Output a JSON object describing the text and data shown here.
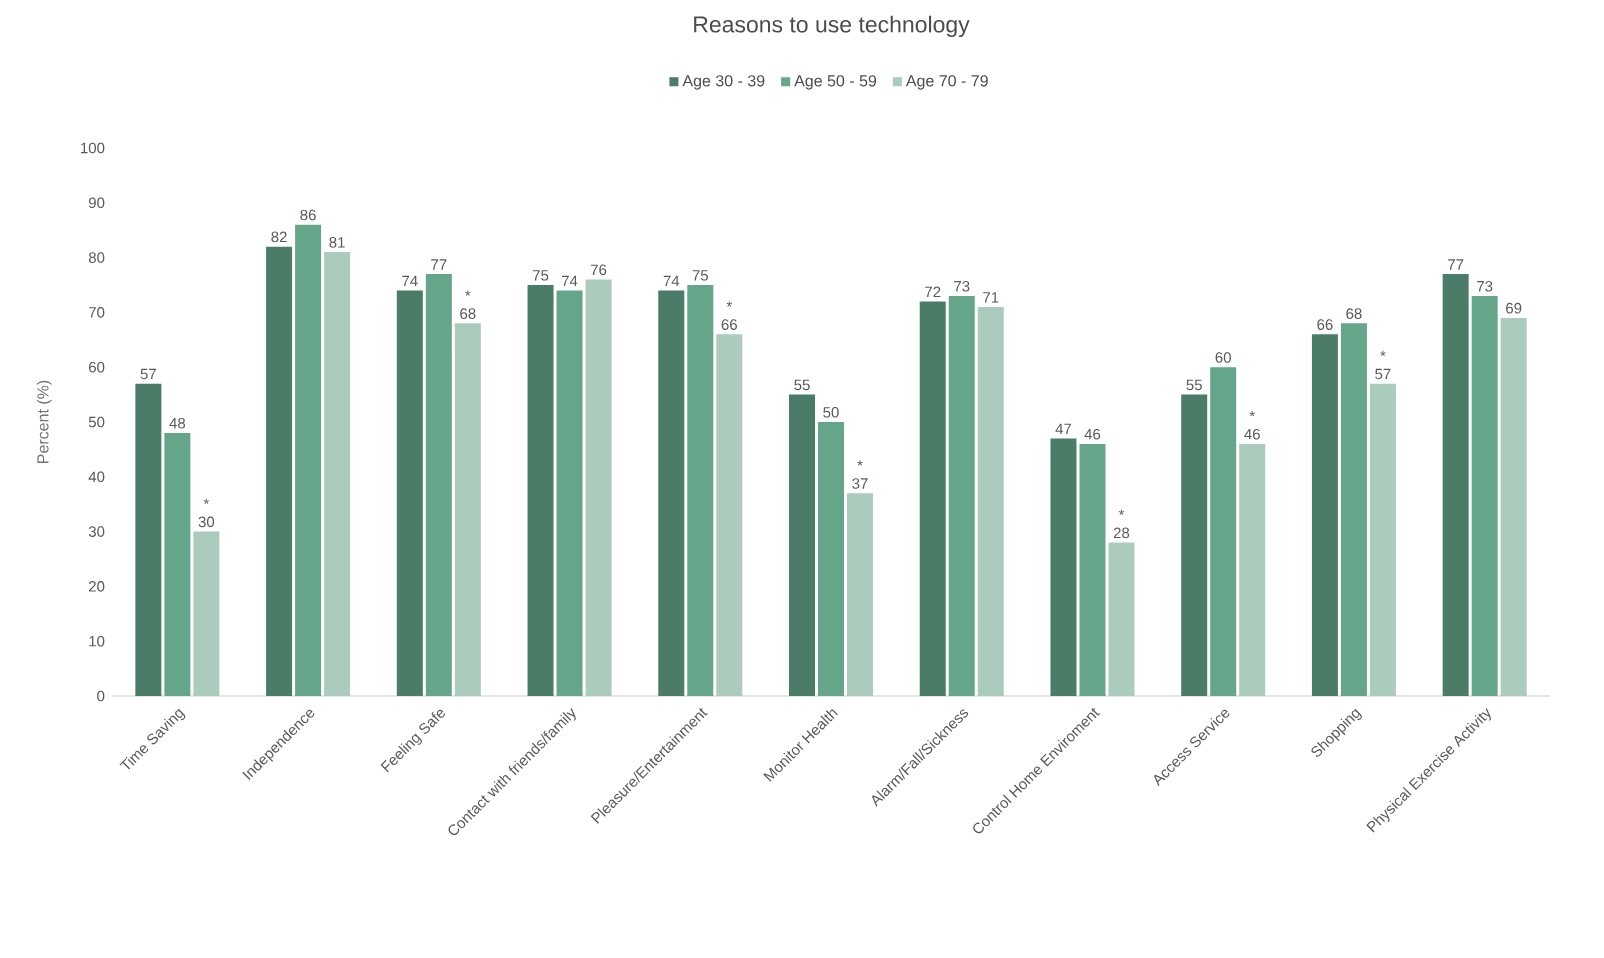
{
  "chart_data": {
    "type": "bar",
    "title": "Reasons to use technology",
    "ylabel": "Percent (%)",
    "categories": [
      "Time Saving",
      "Independence",
      "Feeling Safe",
      "Contact with friends/family",
      "Pleasure/Entertainment",
      "Monitor Health",
      "Alarm/Fall/Sickness",
      "Control Home Enviroment",
      "Access Service",
      "Shopping",
      "Physical Exercise Activity"
    ],
    "series": [
      {
        "name": "Age 30 - 39",
        "color": "#4a7c67",
        "values": [
          57,
          82,
          74,
          75,
          74,
          55,
          72,
          47,
          55,
          66,
          77
        ],
        "value_labels": [
          "57",
          "82",
          "74",
          "75",
          "74",
          "55",
          "72",
          "47",
          "55",
          "66",
          "77"
        ]
      },
      {
        "name": "Age 50 - 59",
        "color": "#65a58a",
        "values": [
          48,
          86,
          77,
          74,
          75,
          50,
          73,
          46,
          60,
          68,
          73
        ],
        "value_labels": [
          "48",
          "86",
          "77",
          "74",
          "75",
          "50",
          "73",
          "46",
          "60",
          "68",
          "73"
        ]
      },
      {
        "name": "Age 70 - 79",
        "color": "#abcbbc",
        "values": [
          30,
          81,
          68,
          76,
          66,
          37,
          71,
          28,
          46,
          57,
          69
        ],
        "value_labels": [
          "* 30",
          "81",
          "* 68",
          "76",
          "* 66",
          "* 37",
          "71",
          "* 28",
          "* 46",
          "* 57",
          "69"
        ]
      }
    ],
    "ylim": [
      0,
      100
    ],
    "yticks": [
      0,
      10,
      20,
      30,
      40,
      50,
      60,
      70,
      80,
      90,
      100
    ],
    "legend": "top"
  }
}
